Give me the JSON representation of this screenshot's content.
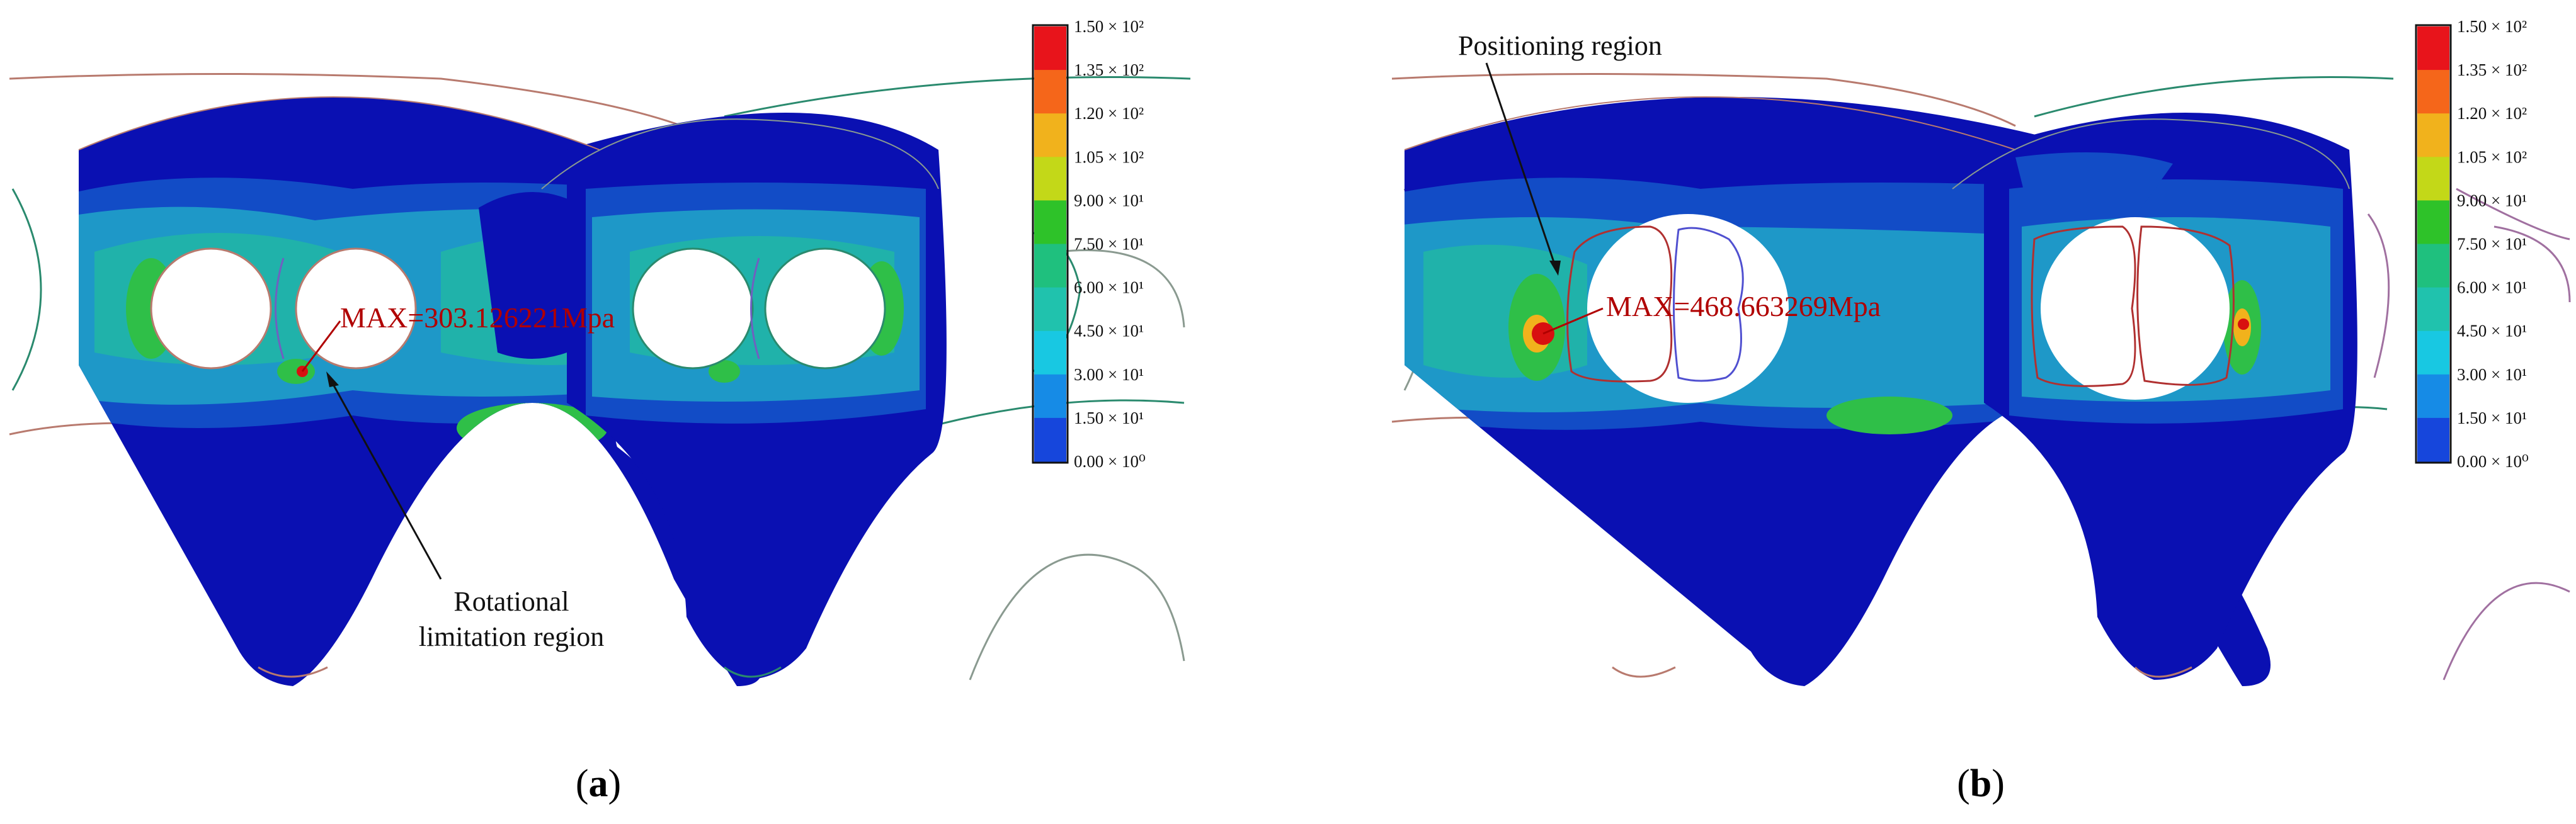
{
  "panels": [
    {
      "id": "a",
      "subfig_label": "a",
      "max_label": "MAX=303.126221Mpa",
      "annotation": [
        "Rotational",
        "limitation region"
      ]
    },
    {
      "id": "b",
      "subfig_label": "b",
      "max_label": "MAX=468.663269Mpa",
      "annotation": [
        "Positioning region"
      ]
    }
  ],
  "legend": {
    "labels": [
      "1.50 × 10²",
      "1.35 × 10²",
      "1.20 × 10²",
      "1.05 × 10²",
      "9.00 × 10¹",
      "7.50 × 10¹",
      "6.00 × 10¹",
      "4.50 × 10¹",
      "3.00 × 10¹",
      "1.50 × 10¹",
      "0.00 × 10⁰"
    ],
    "colors": [
      "#e8141b",
      "#f5661a",
      "#f1b21c",
      "#c3d818",
      "#2ec229",
      "#1fc07e",
      "#20c2ad",
      "#18c8e2",
      "#168be6",
      "#1646dc"
    ]
  },
  "colors": {
    "plate": "#0a10b2",
    "band_outer": "#124cc6",
    "band_mid": "#1e98c8",
    "band_inner": "#20b2aa",
    "hot_green": "#2fbf48",
    "hot_red": "#d81010"
  }
}
